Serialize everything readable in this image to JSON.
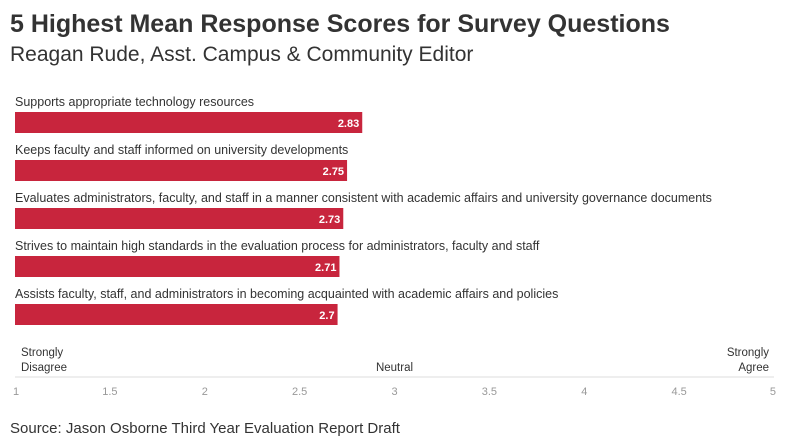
{
  "colors": {
    "bar": "#c8253d",
    "bar_label": "#ffffff",
    "text": "#333333",
    "axis": "#dddddd",
    "tick": "#999999"
  },
  "chart_data": {
    "type": "bar",
    "orientation": "horizontal",
    "title": "5 Highest Mean Response Scores for Survey Questions",
    "subtitle": "Reagan Rude, Asst. Campus & Community Editor",
    "categories": [
      "Supports appropriate technology resources",
      "Keeps faculty and staff informed on university developments",
      "Evaluates administrators, faculty, and staff in a manner consistent with academic affairs and university governance documents",
      "Strives to maintain high standards in the evaluation process for administrators, faculty and staff",
      "Assists faculty, staff, and administrators in becoming acquainted with academic affairs and policies"
    ],
    "values": [
      2.83,
      2.75,
      2.73,
      2.71,
      2.7
    ],
    "value_labels": [
      "2.83",
      "2.75",
      "2.73",
      "2.71",
      "2.7"
    ],
    "xlim": [
      1,
      5
    ],
    "ticks": [
      1,
      1.5,
      2,
      2.5,
      3,
      3.5,
      4,
      4.5,
      5
    ],
    "tick_labels": [
      "1",
      "1.5",
      "2",
      "2.5",
      "3",
      "3.5",
      "4",
      "4.5",
      "5"
    ],
    "scale_labels": {
      "low": [
        "Strongly",
        "Disagree"
      ],
      "mid": "Neutral",
      "high": [
        "Strongly",
        "Agree"
      ]
    },
    "xlabel": "",
    "ylabel": "",
    "grid": false
  },
  "source": "Source: Jason Osborne Third Year Evaluation Report Draft"
}
